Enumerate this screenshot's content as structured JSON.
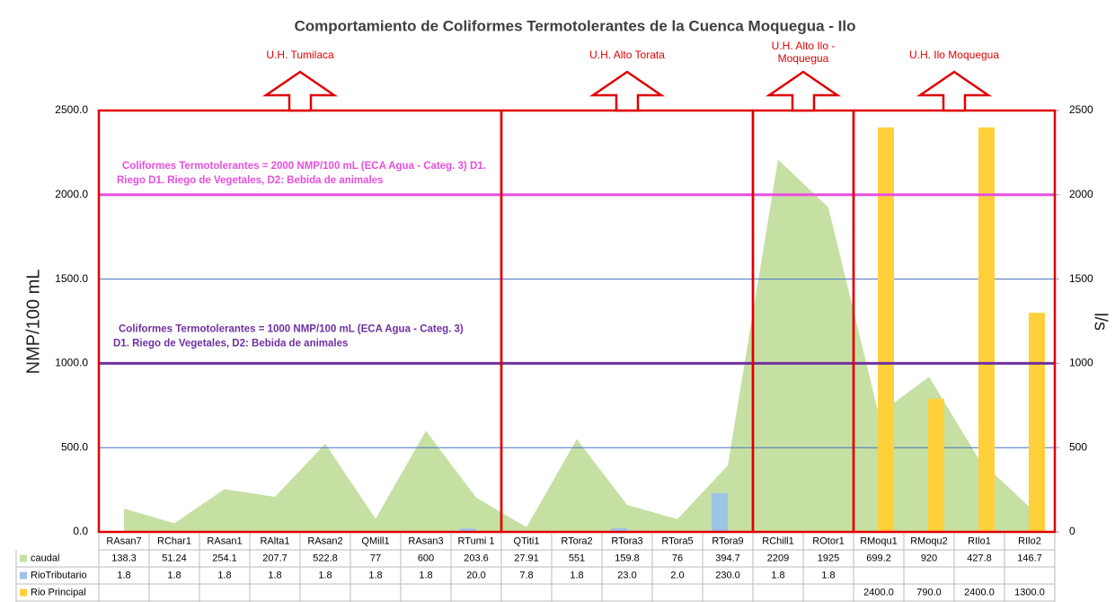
{
  "chart_data": {
    "type": "bar",
    "title": "Comportamiento de Coliformes Termotolerantes de la Cuenca Moquegua  - Ilo",
    "y_label": "NMP/100 mL",
    "y2_label": "l/s",
    "categories": [
      "RAsan7",
      "RChar1",
      "RAsan1",
      "RAlta1",
      "RAsan2",
      "QMill1",
      "RAsan3",
      "RTumi 1",
      "QTiti1",
      "RTora2",
      "RTora3",
      "RTora5",
      "RTora9",
      "RChill1",
      "ROtor1",
      "RMoqu1",
      "RMoqu2",
      "RIlo1",
      "RIlo2"
    ],
    "series": [
      {
        "name": "caudal",
        "type": "area",
        "axis": "y2",
        "color": "#c6e0a4",
        "values": [
          138.3,
          51.24,
          254.1,
          207.7,
          522.8,
          77,
          600,
          203.6,
          27.91,
          551,
          159.8,
          76,
          394.7,
          2209,
          1925,
          699.2,
          920,
          427.8,
          146.7
        ]
      },
      {
        "name": "RioTributario",
        "type": "bar",
        "color": "#9dc3e6",
        "values": [
          1.8,
          1.8,
          1.8,
          1.8,
          1.8,
          1.8,
          1.8,
          20.0,
          7.8,
          1.8,
          23.0,
          2.0,
          230.0,
          1.8,
          1.8,
          null,
          null,
          null,
          null
        ],
        "value_labels": [
          "1.8",
          "1.8",
          "1.8",
          "1.8",
          "1.8",
          "1.8",
          "1.8",
          "20.0",
          "7.8",
          "1.8",
          "23.0",
          "2.0",
          "230.0",
          "1.8",
          "1.8",
          null,
          null,
          null,
          null
        ]
      },
      {
        "name": "Rio Principal",
        "type": "bar",
        "color": "#ffd03a",
        "values": [
          null,
          null,
          null,
          null,
          null,
          null,
          null,
          null,
          null,
          null,
          null,
          null,
          null,
          null,
          null,
          2400,
          790,
          2400,
          1300
        ],
        "value_labels": [
          null,
          null,
          null,
          null,
          null,
          null,
          null,
          null,
          null,
          null,
          null,
          null,
          null,
          null,
          null,
          "2400.0",
          "790.0",
          "2400.0",
          "1300.0"
        ]
      }
    ],
    "ylim": [
      0,
      2500
    ],
    "yticks": [
      {
        "value": 0,
        "label": "0.0"
      },
      {
        "value": 500,
        "label": "500.0"
      },
      {
        "value": 1000,
        "label": "1000.0"
      },
      {
        "value": 1500,
        "label": "1500.0"
      },
      {
        "value": 2000,
        "label": "2000.0"
      },
      {
        "value": 2500,
        "label": "2500.0"
      }
    ],
    "y2lim": [
      0,
      2500
    ],
    "y2ticks": [
      0,
      500,
      1000,
      1500,
      2000,
      2500
    ],
    "grid": true,
    "reference_lines": [
      {
        "value": 2000,
        "color": "#e84ee0",
        "lines": [
          "Coliformes Termotolerantes = 2000 NMP/100 mL (ECA Agua - Categ. 3) D1.",
          "Riego D1. Riego de Vegetales, D2: Bebida de animales"
        ]
      },
      {
        "value": 1000,
        "color": "#7030a0",
        "lines": [
          "Coliformes Termotolerantes = 1000 NMP/100 mL (ECA Agua - Categ. 3)",
          "D1. Riego de Vegetales, D2: Bebida de animales"
        ]
      }
    ],
    "regions": [
      {
        "lines": [
          "U.H. Tumilaca"
        ],
        "from": "RAsan7",
        "to": "RTumi 1"
      },
      {
        "lines": [
          "U.H. Alto Torata"
        ],
        "from": "QTiti1",
        "to": "RTora9"
      },
      {
        "lines": [
          "U.H. Alto Ilo -",
          "Moquegua"
        ],
        "from": "RChill1",
        "to": "ROtor1"
      },
      {
        "lines": [
          "U.H. Ilo Moquegua"
        ],
        "from": "RMoqu1",
        "to": "RIlo2"
      }
    ]
  }
}
